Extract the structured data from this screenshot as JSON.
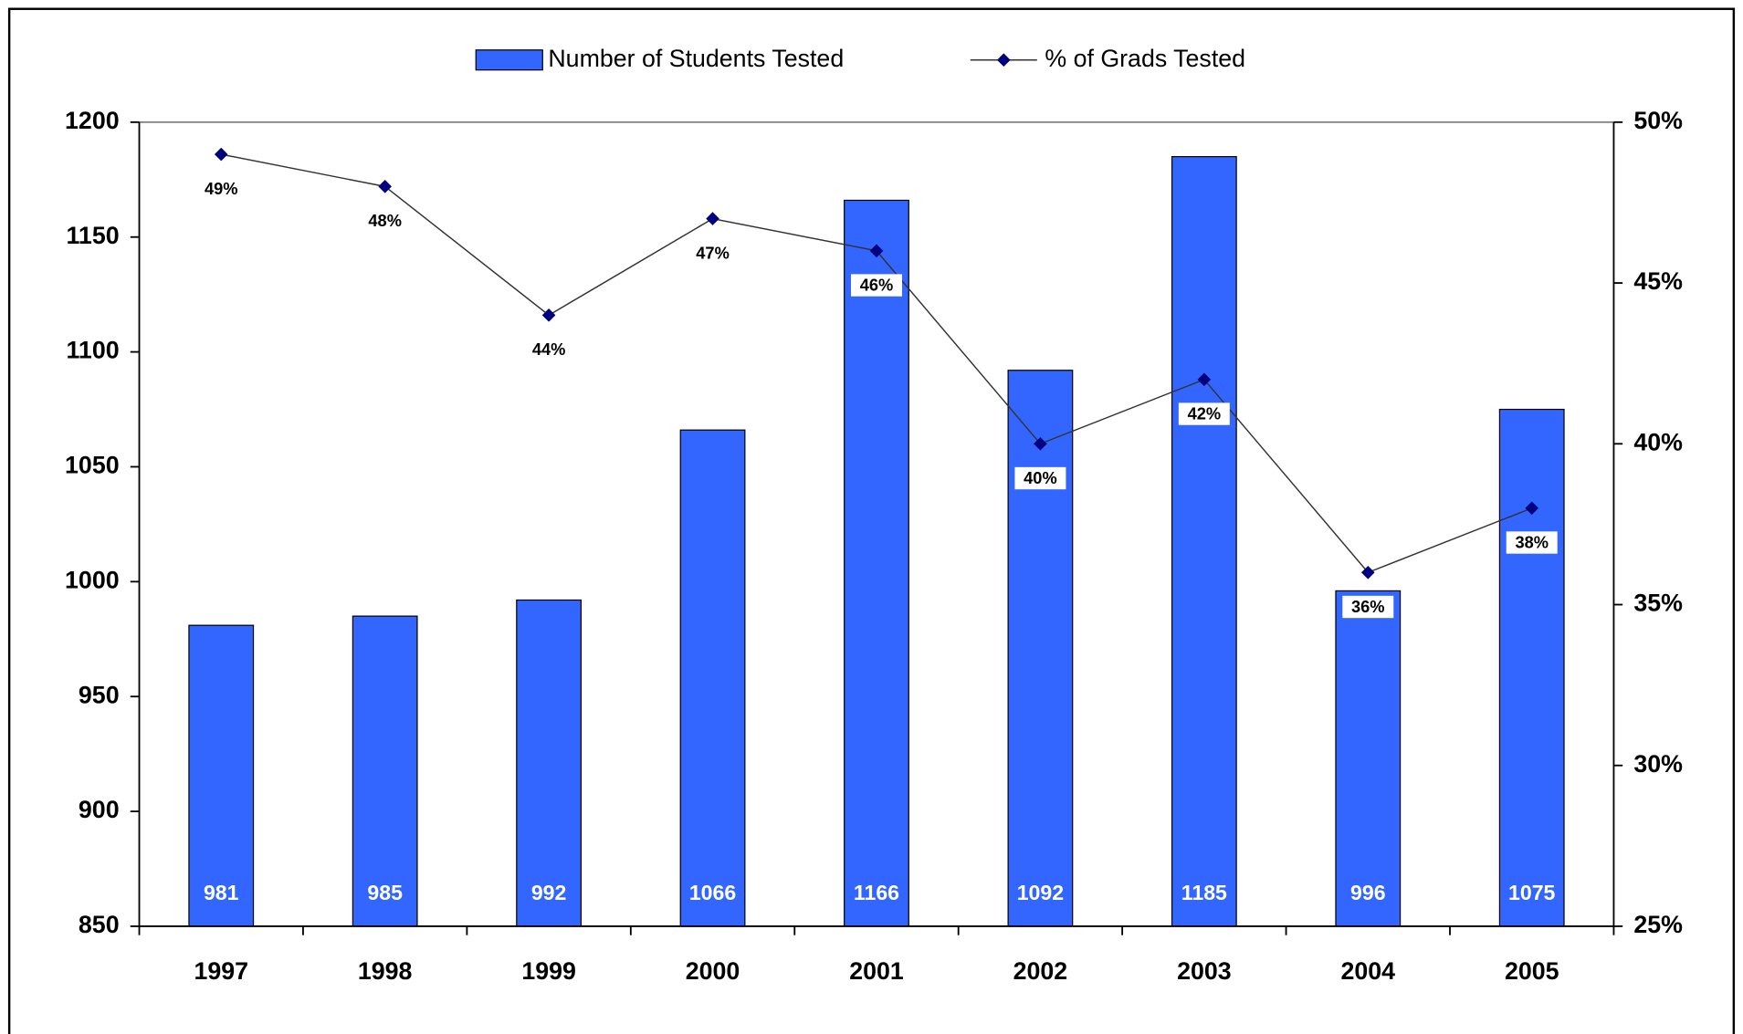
{
  "chart_data": {
    "type": "bar",
    "categories": [
      "1997",
      "1998",
      "1999",
      "2000",
      "2001",
      "2002",
      "2003",
      "2004",
      "2005"
    ],
    "series": [
      {
        "name": "Number of Students Tested",
        "type": "bar",
        "color": "#3366ff",
        "values": [
          981,
          985,
          992,
          1066,
          1166,
          1092,
          1185,
          996,
          1075
        ]
      },
      {
        "name": "% of Grads Tested",
        "type": "line",
        "axis": "y2",
        "color": "#000080",
        "values": [
          49,
          48,
          44,
          47,
          46,
          40,
          42,
          36,
          38
        ],
        "value_labels": [
          "49%",
          "48%",
          "44%",
          "47%",
          "46%",
          "40%",
          "42%",
          "36%",
          "38%"
        ]
      }
    ],
    "ylim": [
      850,
      1200
    ],
    "yticks": [
      850,
      900,
      950,
      1000,
      1050,
      1100,
      1150,
      1200
    ],
    "y2lim": [
      25,
      50
    ],
    "y2ticks": [
      {
        "value": 25,
        "label": "25%"
      },
      {
        "value": 30,
        "label": "30%"
      },
      {
        "value": 35,
        "label": "35%"
      },
      {
        "value": 40,
        "label": "40%"
      },
      {
        "value": 45,
        "label": "45%"
      },
      {
        "value": 50,
        "label": "50%"
      }
    ],
    "legend": "top"
  }
}
